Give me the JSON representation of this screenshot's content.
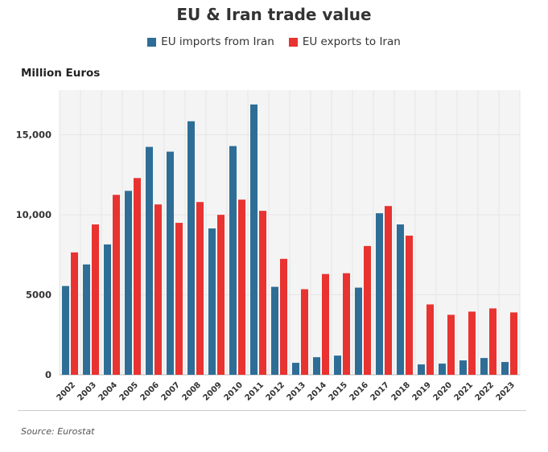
{
  "header": {
    "title": "EU & Iran trade value"
  },
  "footer": {
    "source": "Source: Eurostat"
  },
  "chart_data": {
    "type": "bar",
    "title": "EU & Iran trade value",
    "ylabel": "Million Euros",
    "xlabel": "",
    "ylim": [
      0,
      17800
    ],
    "yticks": [
      0,
      5000,
      10000,
      15000
    ],
    "ytick_labels": [
      "0",
      "5000",
      "10,000",
      "15,000"
    ],
    "grid": true,
    "legend_position": "top",
    "categories": [
      "2002",
      "2003",
      "2004",
      "2005",
      "2006",
      "2007",
      "2008",
      "2009",
      "2010",
      "2011",
      "2012",
      "2013",
      "2014",
      "2015",
      "2016",
      "2017",
      "2018",
      "2019",
      "2020",
      "2021",
      "2022",
      "2023"
    ],
    "series": [
      {
        "name": "EU imports from Iran",
        "color": "#2e6e96",
        "values": [
          5550,
          6900,
          8150,
          11500,
          14250,
          13950,
          15850,
          9150,
          14300,
          16900,
          5500,
          750,
          1100,
          1200,
          5450,
          10100,
          9400,
          650,
          700,
          900,
          1050,
          800
        ]
      },
      {
        "name": "EU exports to Iran",
        "color": "#e83331",
        "values": [
          7650,
          9400,
          11250,
          12300,
          10650,
          9500,
          10800,
          10000,
          10950,
          10250,
          7250,
          5350,
          6300,
          6350,
          8050,
          10550,
          8700,
          4400,
          3750,
          3950,
          4150,
          3900
        ]
      }
    ]
  }
}
